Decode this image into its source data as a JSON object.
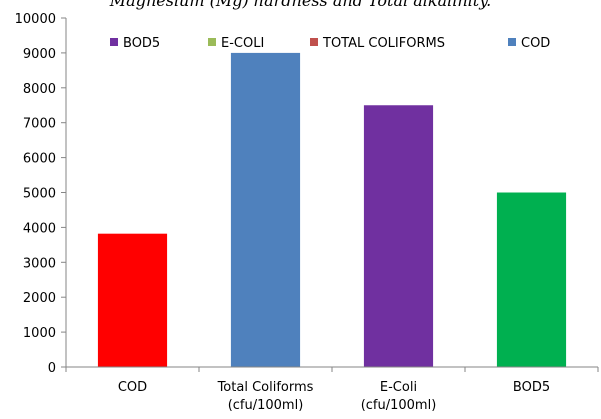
{
  "caption": "Magnesium (Mg) hardness and Total alkalinity.",
  "chart_data": {
    "type": "bar",
    "stacked": true,
    "categories": [
      [
        "COD"
      ],
      [
        "Total Coliforms",
        "(cfu/100ml)"
      ],
      [
        "E-Coli",
        "(cfu/100ml)"
      ],
      [
        "BOD5"
      ]
    ],
    "ylim": [
      0,
      10000
    ],
    "yticks": [
      0,
      1000,
      2000,
      3000,
      4000,
      5000,
      6000,
      7000,
      8000,
      9000,
      10000
    ],
    "grid": false,
    "legend_position": "top",
    "legend": [
      {
        "name": "BOD5",
        "color": "#7030A0"
      },
      {
        "name": "E-COLI",
        "color": "#9BBB59"
      },
      {
        "name": "TOTAL COLIFORMS",
        "color": "#C0504D"
      },
      {
        "name": "COD",
        "color": "#4F81BD"
      }
    ],
    "bars": [
      {
        "category": "COD",
        "value": 3820,
        "color": "#FF0000"
      },
      {
        "category": "Total Coliforms",
        "value": 9000,
        "color": "#4F81BD"
      },
      {
        "category": "E-Coli",
        "value": 7500,
        "color": "#7030A0"
      },
      {
        "category": "BOD5",
        "value": 5000,
        "color": "#00B050"
      }
    ]
  }
}
